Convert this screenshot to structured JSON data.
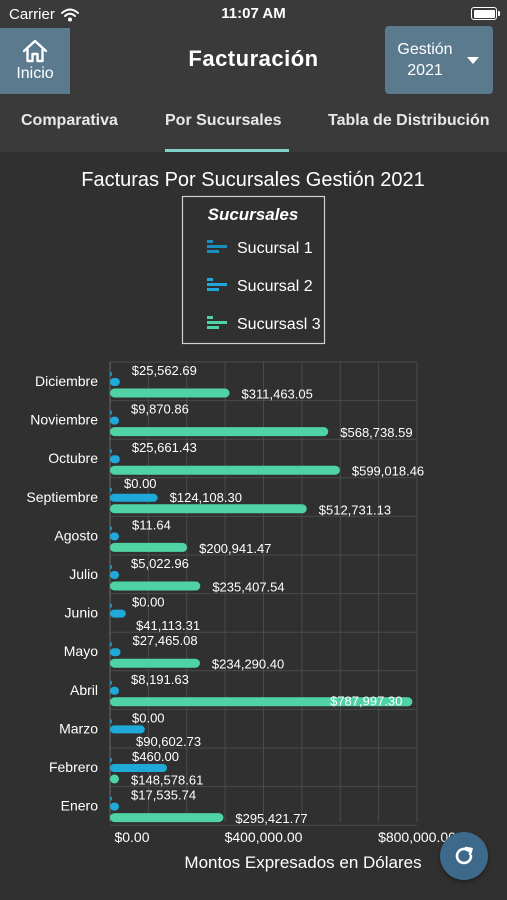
{
  "status_bar": {
    "carrier": "Carrier",
    "time": "11:07 AM"
  },
  "header": {
    "home_label": "Inicio",
    "title": "Facturación",
    "year_selector": {
      "line1": "Gestión",
      "line2": "2021"
    }
  },
  "tabs": [
    {
      "label": "Comparativa",
      "active": false
    },
    {
      "label": "Por Sucursales",
      "active": true
    },
    {
      "label": "Tabla de Distribución",
      "active": false
    }
  ],
  "colors": {
    "accent": "#7fd1c9",
    "series1": "#1c8fbd",
    "series2": "#1fa9d8",
    "series3": "#4fd3a5",
    "button": "#5b7a8e"
  },
  "chart_data": {
    "type": "bar",
    "orientation": "horizontal",
    "title": "Facturas Por Sucursales Gestión 2021",
    "legend_title": "Sucursales",
    "legend_position": "top-center",
    "xlabel": "Montos Expresados en Dólares",
    "xlim": [
      0,
      800000
    ],
    "x_ticks": [
      "$0.00",
      "$400,000.00",
      "$800,000.00"
    ],
    "grid": true,
    "categories": [
      "Diciembre",
      "Noviembre",
      "Octubre",
      "Septiembre",
      "Agosto",
      "Julio",
      "Junio",
      "Mayo",
      "Abril",
      "Marzo",
      "Febrero",
      "Enero"
    ],
    "series": [
      {
        "name": "Sucursal 1",
        "color": "#1c8fbd",
        "values": [
          0,
          0,
          0,
          0,
          0,
          0,
          0,
          0,
          0,
          0,
          0,
          0
        ]
      },
      {
        "name": "Sucursal 2",
        "color": "#1fa9d8",
        "values": [
          25562.69,
          9870.86,
          25661.43,
          124108.3,
          11.64,
          5022.96,
          41113.31,
          27465.08,
          8191.63,
          90602.73,
          148578.61,
          17535.74
        ]
      },
      {
        "name": "Sucursasl 3",
        "color": "#4fd3a5",
        "values": [
          311463.05,
          568738.59,
          599018.46,
          512731.13,
          200941.47,
          235407.54,
          0,
          234290.4,
          787997.3,
          0,
          460.0,
          295421.77
        ]
      }
    ],
    "bar_labels": {
      "top": [
        "$25,562.69",
        "$9,870.86",
        "$25,661.43",
        "$0.00",
        "$11.64",
        "$5,022.96",
        "$0.00",
        "$27,465.08",
        "$8,191.63",
        "$0.00",
        "$460.00",
        "$17,535.74"
      ],
      "middle": [
        "",
        "",
        "",
        "$124,108.30",
        "",
        "",
        "",
        "",
        "",
        "",
        "",
        ""
      ],
      "bottom": [
        "$311,463.05",
        "$568,738.59",
        "$599,018.46",
        "$512,731.13",
        "$200,941.47",
        "$235,407.54",
        "$41,113.31",
        "$234,290.40",
        "$787,997.30",
        "$90,602.73",
        "$148,578.61",
        "$295,421.77"
      ]
    }
  }
}
